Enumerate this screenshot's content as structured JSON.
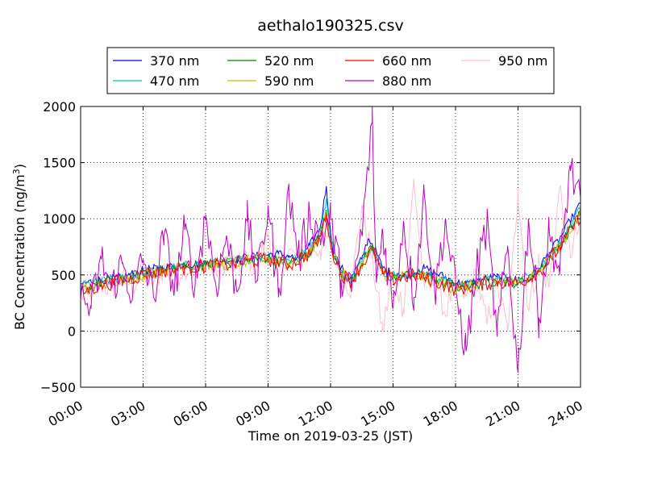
{
  "chart_data": {
    "type": "line",
    "title": "aethalo190325.csv",
    "xlabel": "Time on 2019-03-25 (JST)",
    "ylabel": "BC Concentration (ng/m³)",
    "ylabel_parts": [
      "BC Concentration (ng/m",
      "3",
      ")"
    ],
    "xlim_hours": [
      0,
      24
    ],
    "ylim": [
      -500,
      2000
    ],
    "x_ticks": [
      {
        "hour": 0,
        "label": "00:00"
      },
      {
        "hour": 3,
        "label": "03:00"
      },
      {
        "hour": 6,
        "label": "06:00"
      },
      {
        "hour": 9,
        "label": "09:00"
      },
      {
        "hour": 12,
        "label": "12:00"
      },
      {
        "hour": 15,
        "label": "15:00"
      },
      {
        "hour": 18,
        "label": "18:00"
      },
      {
        "hour": 21,
        "label": "21:00"
      },
      {
        "hour": 24,
        "label": "24:00"
      }
    ],
    "y_ticks": [
      {
        "value": -500,
        "label": "−500"
      },
      {
        "value": 0,
        "label": "0"
      },
      {
        "value": 500,
        "label": "500"
      },
      {
        "value": 1000,
        "label": "1000"
      },
      {
        "value": 1500,
        "label": "1500"
      },
      {
        "value": 2000,
        "label": "2000"
      }
    ],
    "grid": true,
    "legend_position": "top",
    "x_unit": "hour",
    "baseline": {
      "x": [
        0,
        1,
        2,
        3,
        4,
        5,
        6,
        7,
        8,
        9,
        10,
        10.5,
        11,
        11.5,
        11.8,
        12.1,
        12.5,
        13,
        13.5,
        14,
        14.5,
        15,
        15.5,
        16,
        16.5,
        17,
        17.5,
        18,
        18.5,
        19,
        20,
        21,
        21.5,
        22,
        22.5,
        23,
        23.5,
        24
      ],
      "y": [
        380,
        400,
        430,
        470,
        520,
        560,
        580,
        600,
        620,
        630,
        610,
        560,
        700,
        850,
        1000,
        760,
        560,
        460,
        620,
        760,
        520,
        500,
        470,
        560,
        520,
        460,
        420,
        380,
        400,
        420,
        460,
        440,
        430,
        520,
        640,
        780,
        900,
        1000
      ]
    },
    "series": [
      {
        "name": "370 nm",
        "color": "#0000ff",
        "x": [
          0,
          0.5,
          1,
          1.5,
          2,
          2.5,
          3,
          3.5,
          4,
          4.5,
          5,
          5.5,
          6,
          6.5,
          7,
          7.5,
          8,
          8.5,
          9,
          9.5,
          10,
          10.5,
          11,
          11.5,
          11.8,
          12,
          12.2,
          12.5,
          13,
          13.5,
          13.8,
          14,
          14.5,
          15,
          15.5,
          16,
          16.5,
          17,
          17.5,
          18,
          18.5,
          19,
          19.5,
          20,
          20.5,
          21,
          21.5,
          22,
          22.5,
          23,
          23.5,
          24
        ],
        "y": [
          420,
          440,
          455,
          460,
          480,
          510,
          540,
          555,
          560,
          580,
          590,
          600,
          610,
          620,
          630,
          640,
          660,
          670,
          680,
          690,
          670,
          620,
          760,
          920,
          1290,
          870,
          640,
          560,
          470,
          640,
          820,
          780,
          560,
          510,
          490,
          520,
          560,
          520,
          480,
          430,
          420,
          440,
          470,
          480,
          470,
          450,
          440,
          560,
          700,
          820,
          980,
          1130
        ]
      },
      {
        "name": "470 nm",
        "color": "#00bfbf",
        "x": [
          0,
          1,
          2,
          3,
          4,
          5,
          6,
          7,
          8,
          9,
          10,
          11,
          11.5,
          11.8,
          12,
          12.5,
          13,
          13.5,
          14,
          14.5,
          15,
          16,
          17,
          18,
          19,
          20,
          21,
          22,
          23,
          24
        ],
        "y": [
          400,
          440,
          470,
          520,
          550,
          580,
          600,
          610,
          640,
          660,
          630,
          720,
          880,
          1180,
          820,
          540,
          460,
          620,
          760,
          540,
          490,
          530,
          480,
          410,
          430,
          460,
          440,
          550,
          780,
          1080
        ]
      },
      {
        "name": "520 nm",
        "color": "#008000",
        "x": [
          0,
          1,
          2,
          3,
          4,
          5,
          6,
          7,
          8,
          9,
          10,
          11,
          11.5,
          11.8,
          12,
          12.5,
          13,
          13.5,
          14,
          14.5,
          15,
          16,
          17,
          18,
          19,
          20,
          21,
          22,
          23,
          24
        ],
        "y": [
          360,
          430,
          460,
          510,
          545,
          575,
          590,
          600,
          630,
          650,
          600,
          700,
          860,
          1080,
          780,
          520,
          450,
          600,
          740,
          520,
          470,
          510,
          460,
          390,
          420,
          450,
          430,
          540,
          760,
          1050
        ]
      },
      {
        "name": "590 nm",
        "color": "#bfbf00",
        "x": [
          0,
          1,
          2,
          3,
          4,
          5,
          6,
          7,
          8,
          9,
          10,
          11,
          11.5,
          11.8,
          12,
          12.5,
          13,
          13.5,
          14,
          14.5,
          15,
          16,
          17,
          18,
          19,
          20,
          21,
          22,
          23,
          24
        ],
        "y": [
          350,
          420,
          450,
          505,
          540,
          570,
          585,
          595,
          625,
          645,
          600,
          695,
          850,
          1060,
          770,
          515,
          445,
          595,
          730,
          515,
          465,
          505,
          450,
          380,
          415,
          445,
          425,
          535,
          750,
          1040
        ]
      },
      {
        "name": "660 nm",
        "color": "#ff0000",
        "x": [
          0,
          1,
          2,
          3,
          4,
          5,
          6,
          7,
          8,
          9,
          10,
          11,
          11.5,
          11.8,
          12,
          12.5,
          13,
          13.5,
          14,
          14.5,
          15,
          16,
          17,
          18,
          19,
          20,
          21,
          22,
          23,
          24
        ],
        "y": [
          340,
          410,
          445,
          500,
          535,
          565,
          580,
          590,
          620,
          640,
          590,
          690,
          840,
          1040,
          760,
          510,
          440,
          590,
          720,
          510,
          460,
          500,
          445,
          370,
          410,
          440,
          420,
          530,
          740,
          1030
        ]
      },
      {
        "name": "880 nm",
        "color": "#bf00bf",
        "x": [
          0,
          0.5,
          1,
          1.5,
          2,
          2.5,
          3,
          3.5,
          4,
          4.5,
          5,
          5.5,
          6,
          6.5,
          7,
          7.5,
          8,
          8.5,
          9,
          9.5,
          10,
          10.5,
          11,
          11.5,
          12,
          12.5,
          13,
          13.5,
          14,
          14.2,
          14.5,
          15,
          15.5,
          16,
          16.5,
          17,
          17.5,
          18,
          18.5,
          19,
          19.5,
          20,
          20.5,
          21,
          21.5,
          22,
          22.5,
          23,
          23.5,
          24
        ],
        "y": [
          300,
          200,
          640,
          380,
          600,
          330,
          640,
          300,
          850,
          360,
          900,
          420,
          1040,
          400,
          850,
          350,
          980,
          450,
          1120,
          300,
          1240,
          640,
          1050,
          820,
          1000,
          460,
          350,
          860,
          1860,
          430,
          900,
          200,
          980,
          300,
          1220,
          340,
          980,
          380,
          -180,
          530,
          950,
          -50,
          760,
          -370,
          1000,
          120,
          880,
          500,
          1480,
          1100
        ]
      },
      {
        "name": "950 nm",
        "color": "#ffc0cb",
        "x": [
          0,
          0.5,
          1,
          1.5,
          2,
          2.5,
          3,
          3.5,
          4,
          4.5,
          5,
          5.5,
          6,
          6.5,
          7,
          7.5,
          8,
          8.5,
          9,
          9.5,
          10,
          10.5,
          11,
          11.5,
          12,
          12.5,
          13,
          13.5,
          14,
          14.5,
          15,
          15.5,
          16,
          16.5,
          17,
          17.5,
          18,
          18.5,
          19,
          19.5,
          20,
          20.5,
          21,
          21.5,
          22,
          22.5,
          23,
          23.5,
          24
        ],
        "y": [
          320,
          360,
          420,
          380,
          480,
          400,
          520,
          430,
          560,
          470,
          580,
          520,
          620,
          540,
          640,
          560,
          650,
          570,
          880,
          560,
          720,
          600,
          760,
          720,
          880,
          520,
          380,
          1120,
          640,
          0,
          520,
          200,
          1340,
          380,
          520,
          150,
          460,
          300,
          500,
          60,
          420,
          0,
          1260,
          200,
          620,
          400,
          1280,
          700,
          960
        ]
      }
    ]
  }
}
